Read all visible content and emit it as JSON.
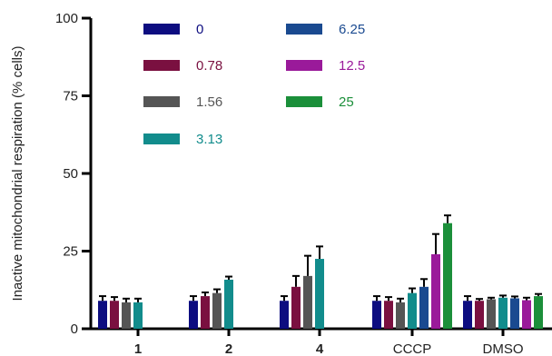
{
  "chart_data": {
    "type": "bar",
    "title": "",
    "xlabel": "",
    "ylabel": "Inactive mitochondrial respiration (% cells)",
    "ylim": [
      0,
      100
    ],
    "yticks": [
      "0",
      "25",
      "50",
      "75",
      "100"
    ],
    "grid": false,
    "legend_placement": "top-left inside plot",
    "categories": [
      "1",
      "2",
      "4",
      "CCCP",
      "DMSO"
    ],
    "series": [
      {
        "name": "0",
        "color": "#0d0d80",
        "values": [
          9,
          9,
          9,
          9,
          9
        ],
        "errors": [
          1.5,
          1.5,
          1.5,
          1.5,
          1.5
        ]
      },
      {
        "name": "0.78",
        "color": "#7a1040",
        "values": [
          9,
          10.5,
          13.5,
          9,
          9
        ],
        "errors": [
          1.2,
          1.2,
          3.5,
          1.2,
          0.6
        ]
      },
      {
        "name": "1.56",
        "color": "#555555",
        "values": [
          8.5,
          11.5,
          17,
          8.5,
          9.5
        ],
        "errors": [
          1.2,
          1.2,
          6.5,
          1.2,
          0.5
        ]
      },
      {
        "name": "3.13",
        "color": "#128c8c",
        "values": [
          8.5,
          15.8,
          22.5,
          11.5,
          10
        ],
        "errors": [
          1.2,
          1.0,
          4.0,
          1.5,
          0.7
        ]
      },
      {
        "name": "6.25",
        "color": "#1a4a90",
        "values": [
          null,
          null,
          null,
          13.5,
          9.8
        ],
        "errors": [
          null,
          null,
          null,
          2.5,
          0.6
        ]
      },
      {
        "name": "12.5",
        "color": "#9a1a9a",
        "values": [
          null,
          null,
          null,
          24,
          9.2
        ],
        "errors": [
          null,
          null,
          null,
          6.5,
          0.8
        ]
      },
      {
        "name": "25",
        "color": "#1b8f3a",
        "values": [
          null,
          null,
          null,
          34,
          10.5
        ],
        "errors": [
          null,
          null,
          null,
          2.5,
          0.7
        ]
      }
    ]
  }
}
